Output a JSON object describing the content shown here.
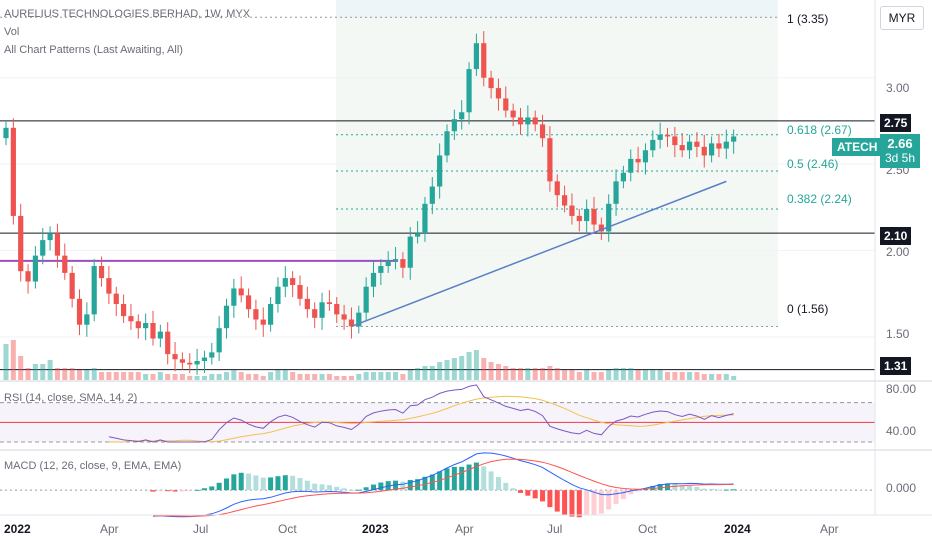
{
  "header": {
    "title": "AURELIUS TECHNOLOGIES BERHAD, 1W, MYX",
    "vol_label": "Vol",
    "patterns_label": "All Chart Patterns (Last Awaiting, All)",
    "currency_button": "MYR"
  },
  "symbol": {
    "ticker": "ATECH",
    "last_price": "2.66",
    "countdown": "3d 5h"
  },
  "fib_labels": [
    {
      "text": "1 (3.35)",
      "color": "#6a6d78"
    },
    {
      "text": "0.618 (2.67)",
      "color": "#26a69a"
    },
    {
      "text": "0.5 (2.46)",
      "color": "#26a69a"
    },
    {
      "text": "0.382 (2.24)",
      "color": "#26a69a"
    },
    {
      "text": "0 (1.56)",
      "color": "#6a6d78"
    }
  ],
  "price_axis": {
    "ticks": [
      "3.00",
      "2.50",
      "2.00",
      "1.50"
    ],
    "tags": [
      "2.75",
      "2.10",
      "1.31"
    ]
  },
  "rsi": {
    "label": "RSI (14, close, SMA, 14, 2)",
    "ticks": [
      "80.00",
      "40.00"
    ]
  },
  "macd": {
    "label": "MACD (12, 26, close, 9, EMA, EMA)",
    "ticks": [
      "0.000"
    ]
  },
  "time_axis": [
    "2022",
    "Apr",
    "Jul",
    "Oct",
    "2023",
    "Apr",
    "Jul",
    "Oct",
    "2024",
    "Apr"
  ],
  "colors": {
    "up": "#26a69a",
    "down": "#ef5350",
    "trend": "#5b7fc7",
    "resistance": "#9c4fbf",
    "rsi": "#7e57c2",
    "rsi_ma": "#f2c14e",
    "macd": "#2962ff",
    "signal": "#ff5252"
  },
  "chart_data": {
    "type": "candlestick",
    "interval": "1W",
    "ylim": [
      1.25,
      3.45
    ],
    "horizontal_levels": [
      2.75,
      2.1,
      1.31
    ],
    "fib_levels": [
      3.35,
      2.67,
      2.46,
      2.24,
      1.56
    ],
    "resistance_zone_level": 1.94,
    "trendline": {
      "from": {
        "week": 47,
        "price": 1.56
      },
      "to": {
        "week": 98,
        "price": 2.4
      }
    },
    "first_week": "2022-01-03",
    "closes": [
      2.71,
      2.2,
      1.88,
      1.82,
      1.97,
      2.06,
      2.1,
      1.97,
      1.87,
      1.72,
      1.57,
      1.63,
      1.91,
      1.84,
      1.75,
      1.69,
      1.62,
      1.59,
      1.55,
      1.58,
      1.49,
      1.53,
      1.4,
      1.37,
      1.35,
      1.34,
      1.36,
      1.38,
      1.41,
      1.55,
      1.68,
      1.78,
      1.74,
      1.66,
      1.6,
      1.57,
      1.69,
      1.79,
      1.84,
      1.8,
      1.72,
      1.66,
      1.61,
      1.7,
      1.69,
      1.63,
      1.6,
      1.56,
      1.64,
      1.79,
      1.87,
      1.91,
      1.94,
      1.95,
      1.9,
      2.08,
      2.1,
      2.27,
      2.37,
      2.55,
      2.69,
      2.76,
      2.8,
      3.05,
      3.2,
      3.0,
      2.94,
      2.88,
      2.81,
      2.77,
      2.73,
      2.77,
      2.73,
      2.65,
      2.4,
      2.32,
      2.26,
      2.2,
      2.17,
      2.24,
      2.15,
      2.11,
      2.27,
      2.4,
      2.45,
      2.53,
      2.51,
      2.58,
      2.64,
      2.67,
      2.66,
      2.61,
      2.58,
      2.63,
      2.6,
      2.55,
      2.62,
      2.59,
      2.63,
      2.66
    ],
    "volume_relative": [
      0.9,
      1.0,
      0.6,
      0.3,
      0.4,
      0.4,
      0.5,
      0.3,
      0.3,
      0.3,
      0.25,
      0.25,
      0.3,
      0.2,
      0.2,
      0.2,
      0.2,
      0.2,
      0.2,
      0.15,
      0.15,
      0.2,
      0.15,
      0.15,
      0.15,
      0.1,
      0.1,
      0.1,
      0.15,
      0.15,
      0.2,
      0.25,
      0.2,
      0.15,
      0.15,
      0.1,
      0.2,
      0.25,
      0.25,
      0.2,
      0.15,
      0.15,
      0.15,
      0.15,
      0.15,
      0.1,
      0.1,
      0.1,
      0.15,
      0.2,
      0.2,
      0.2,
      0.2,
      0.2,
      0.15,
      0.25,
      0.3,
      0.35,
      0.35,
      0.45,
      0.5,
      0.55,
      0.6,
      0.7,
      0.75,
      0.55,
      0.45,
      0.4,
      0.35,
      0.3,
      0.3,
      0.3,
      0.3,
      0.3,
      0.35,
      0.3,
      0.25,
      0.25,
      0.2,
      0.25,
      0.2,
      0.2,
      0.25,
      0.3,
      0.3,
      0.3,
      0.25,
      0.25,
      0.25,
      0.25,
      0.2,
      0.2,
      0.2,
      0.2,
      0.2,
      0.15,
      0.15,
      0.15,
      0.15,
      0.1
    ],
    "rsi_range": [
      30,
      90
    ],
    "rsi_bands": [
      70,
      50,
      30
    ],
    "macd_range": [
      -0.2,
      0.35
    ]
  }
}
